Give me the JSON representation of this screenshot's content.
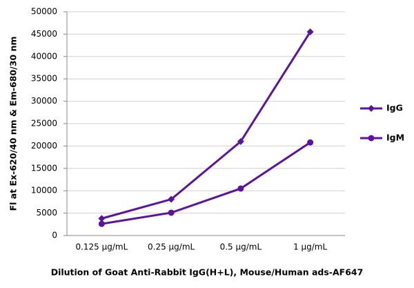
{
  "chart_data": {
    "type": "line",
    "x_label": "Dilution of Goat Anti-Rabbit IgG(H+L), Mouse/Human ads-AF647",
    "y_label": "Fl at Ex-620/40 nm & Em-680/30 nm",
    "categories": [
      "0.125 µg/mL",
      "0.25 µg/mL",
      "0.5 µg/mL",
      "1 µg/mL"
    ],
    "series": [
      {
        "name": "IgG",
        "color": "#5b12a0",
        "marker": "diamond",
        "values": [
          3800,
          8100,
          21000,
          45500
        ]
      },
      {
        "name": "IgM",
        "color": "#5b12a0",
        "marker": "circle",
        "values": [
          2600,
          5100,
          10500,
          20800
        ]
      }
    ],
    "ylim": [
      0,
      50000
    ],
    "yticks": [
      0,
      5000,
      10000,
      15000,
      20000,
      25000,
      30000,
      35000,
      40000,
      45000,
      50000
    ],
    "grid": true,
    "legend": "right"
  }
}
